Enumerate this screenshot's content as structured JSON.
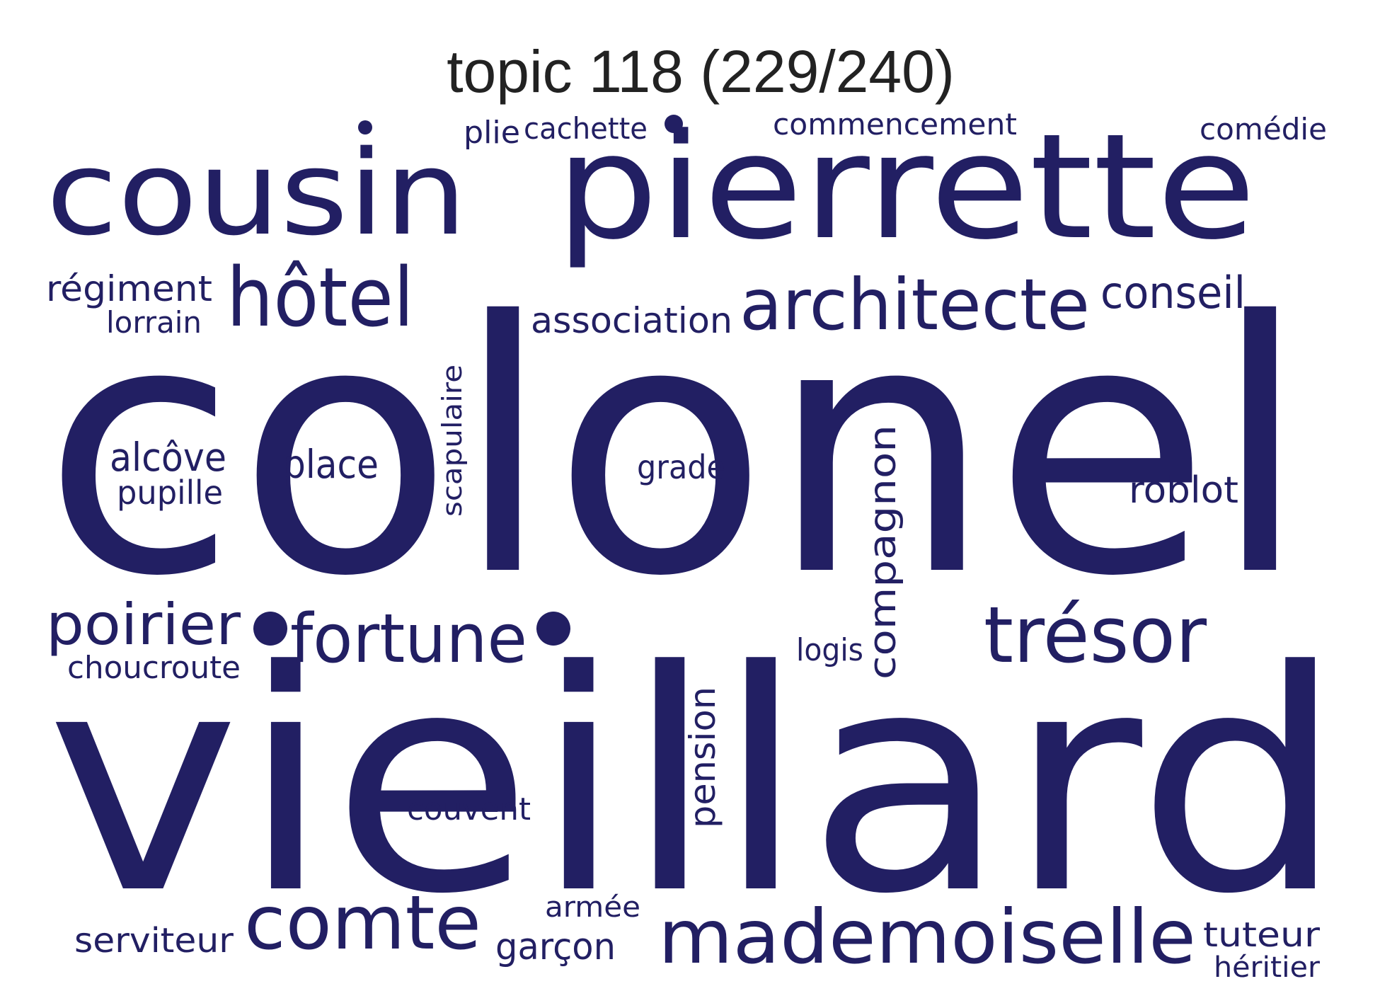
{
  "title": "topic 118 (229/240)",
  "colors": {
    "word": "#221f63",
    "title": "#222222",
    "background": "#ffffff"
  },
  "words": {
    "colonel": "colonel",
    "vieillard": "vieillard",
    "pierrette": "pierrette",
    "cousin": "cousin",
    "architecte": "architecte",
    "hotel": "hôtel",
    "tresor": "trésor",
    "mademoiselle": "mademoiselle",
    "comte": "comte",
    "fortune": "fortune",
    "poirier": "poirier",
    "conseil": "conseil",
    "association": "association",
    "regiment": "régiment",
    "lorrain": "lorrain",
    "place": "place",
    "alcove": "alcôve",
    "pupille": "pupille",
    "grade": "grade",
    "roblot": "roblot",
    "scapulaire": "scapulaire",
    "compagnon": "compagnon",
    "pension": "pension",
    "logis": "logis",
    "choucroute": "choucroute",
    "couvent": "couvent",
    "armee": "armée",
    "garcon": "garçon",
    "serviteur": "serviteur",
    "tuteur": "tuteur",
    "heritier": "héritier",
    "plie": "plie",
    "cachette": "cachette",
    "commencement": "commencement",
    "comedie": "comédie"
  }
}
